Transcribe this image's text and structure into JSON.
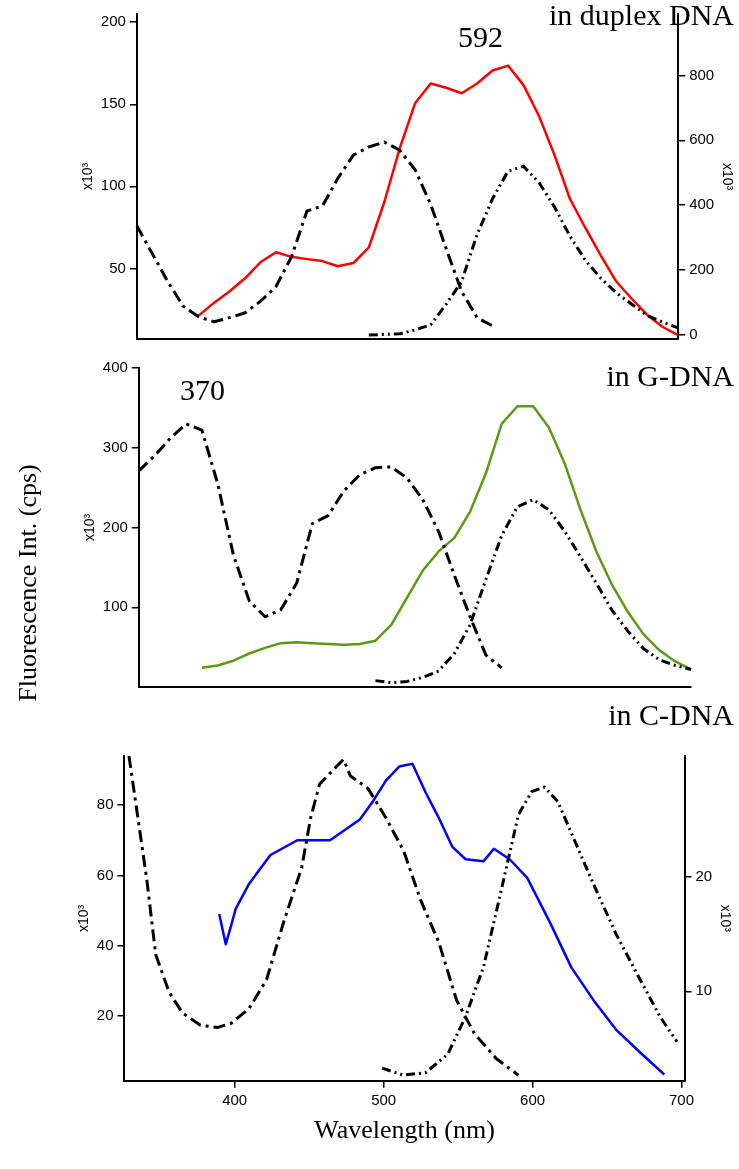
{
  "chart_data": [
    {
      "type": "line",
      "title": "in duplex DNA",
      "ylabel": "x10³",
      "y2label": "x10³",
      "categories": [
        null,
        null,
        null,
        null,
        null,
        null,
        null,
        null,
        null,
        null,
        null,
        null,
        null,
        null,
        null,
        null,
        null,
        null,
        null,
        null,
        null,
        null,
        null,
        null,
        null,
        null,
        null,
        null,
        null,
        null,
        null,
        null,
        null,
        null,
        null,
        null
      ],
      "ylim": [
        7,
        205
      ],
      "yticks": [
        50,
        100,
        150,
        200
      ],
      "y2lim": [
        -12,
        989
      ],
      "y2ticks": [
        0,
        200,
        400,
        600,
        800
      ],
      "tick_labels": "y",
      "grid": false,
      "legend": false,
      "marker": "none",
      "annotations": [
        "592"
      ],
      "series": [
        {
          "color": "#000000",
          "line_style": "dashed",
          "values": [
            76,
            59,
            42,
            27,
            20.5,
            17.5,
            20,
            23,
            30,
            39,
            57,
            85,
            88,
            105,
            119,
            124,
            127,
            122,
            110,
            89,
            62,
            36,
            20,
            15,
            null,
            null,
            null,
            null,
            null,
            null,
            null,
            null,
            null,
            null,
            null,
            null
          ]
        },
        {
          "color": "#000000",
          "line_style": "dotted",
          "axis": "y2",
          "values": [
            null,
            null,
            null,
            null,
            null,
            null,
            null,
            null,
            null,
            null,
            null,
            null,
            null,
            null,
            null,
            0,
            2,
            4,
            16,
            32,
            95,
            165,
            310,
            420,
            505,
            520,
            470,
            395,
            305,
            230,
            175,
            130,
            95,
            60,
            40,
            22
          ]
        },
        {
          "color": "#ff0000",
          "line_style": "solid",
          "axis": "y2",
          "values": [
            null,
            null,
            null,
            null,
            60,
            100,
            135,
            175,
            225,
            255,
            241,
            234,
            228,
            212,
            222,
            270,
            410,
            576,
            715,
            775,
            762,
            745,
            775,
            815,
            830,
            770,
            675,
            555,
            420,
            330,
            245,
            165,
            112,
            62,
            25,
            0
          ]
        }
      ]
    },
    {
      "type": "line",
      "title": "in G-DNA",
      "ylabel": "x10³",
      "categories": [
        null,
        null,
        null,
        null,
        null,
        null,
        null,
        null,
        null,
        null,
        null,
        null,
        null,
        null,
        null,
        null,
        null,
        null,
        null,
        null,
        null,
        null,
        null,
        null,
        null,
        null,
        null,
        null,
        null,
        null,
        null,
        null,
        null,
        null,
        null,
        null
      ],
      "ylim": [
        0,
        400
      ],
      "yticks": [
        100,
        200,
        300,
        400
      ],
      "tick_labels": "y",
      "grid": false,
      "legend": false,
      "marker": "none",
      "annotations": [
        "370",
        "Fluorescence Int. (cps)"
      ],
      "series": [
        {
          "color": "#000000",
          "line_style": "dashed",
          "values": [
            271,
            290,
            312,
            330,
            322,
            255,
            165,
            108,
            88,
            97,
            130,
            205,
            215,
            246,
            266,
            275,
            276,
            262,
            235,
            195,
            140,
            88,
            40,
            24,
            null,
            null,
            null,
            null,
            null,
            null,
            null,
            null,
            null,
            null,
            null,
            null
          ]
        },
        {
          "color": "#000000",
          "line_style": "dotted",
          "values": [
            null,
            null,
            null,
            null,
            null,
            null,
            null,
            null,
            null,
            null,
            null,
            null,
            null,
            null,
            null,
            8,
            5.5,
            7,
            12,
            20,
            42,
            78,
            135,
            190,
            226,
            235,
            222,
            195,
            163,
            130,
            96,
            70,
            48,
            34,
            27,
            22
          ]
        },
        {
          "color": "#5b9b12",
          "line_style": "solid",
          "values": [
            null,
            null,
            null,
            null,
            24,
            27,
            33,
            42,
            49,
            55,
            56,
            55,
            54,
            53,
            54,
            58,
            78,
            112,
            146,
            170,
            187,
            220,
            268,
            330,
            352,
            352,
            325,
            280,
            222,
            170,
            128,
            94,
            66,
            46,
            32,
            22
          ]
        }
      ]
    },
    {
      "type": "line",
      "title": "in C-DNA",
      "xlabel": "Wavelength (nm)",
      "ylabel": "x10³",
      "y2label": "x10³",
      "xlim": [
        326,
        702
      ],
      "xticks": [
        400,
        500,
        600,
        700
      ],
      "ylim": [
        1.5,
        94
      ],
      "yticks": [
        20,
        40,
        60,
        80
      ],
      "y2lim": [
        2.2,
        30.5
      ],
      "y2ticks": [
        10,
        20
      ],
      "grid": false,
      "legend": false,
      "marker": "none",
      "series": [
        {
          "color": "#000000",
          "line_style": "dashed",
          "x": [
            329,
            335,
            341,
            347,
            356,
            365,
            377,
            388.7,
            397.6,
            409.5,
            421.4,
            433,
            445,
            451,
            457,
            466,
            473,
            477.7,
            489.6,
            501.5,
            513.4,
            525,
            537,
            549,
            561,
            575.7,
            590.5
          ],
          "values": [
            94,
            76.4,
            58.7,
            37.4,
            26.7,
            20.8,
            17.3,
            16.7,
            17.9,
            22,
            30.3,
            46.9,
            62.2,
            76.4,
            86,
            90,
            93,
            88.3,
            84.7,
            76.4,
            67,
            52.8,
            41,
            24.4,
            14.9,
            7.8,
            3.1
          ]
        },
        {
          "color": "#000000",
          "line_style": "dotted",
          "axis": "y2",
          "x": [
            499,
            513,
            528,
            543,
            555,
            567,
            578.6,
            590.5,
            599.4,
            608,
            617,
            629,
            641,
            656,
            670.6,
            685.5,
            697
          ],
          "values": [
            3.3,
            2.7,
            2.9,
            4.5,
            7.8,
            12.1,
            18.6,
            25.4,
            27.4,
            27.8,
            26.5,
            22.9,
            19.3,
            15,
            11.4,
            7.8,
            5.6
          ]
        },
        {
          "color": "#0000ff",
          "line_style": "solid",
          "x": [
            389.6,
            394,
            397.6,
            400.6,
            409.5,
            424,
            442,
            464,
            484,
            493,
            501.5,
            510.4,
            519.3,
            528.2,
            537,
            546,
            555,
            567,
            574,
            584.6,
            596.4,
            611.3,
            626,
            641,
            656,
            670.6,
            688.4
          ],
          "values": [
            49,
            40.4,
            45.7,
            50.4,
            57.5,
            65.8,
            70,
            70,
            75.9,
            81.2,
            87,
            91,
            91.8,
            83.6,
            76.4,
            68.2,
            64.6,
            64,
            67.6,
            64.6,
            59.3,
            46.9,
            33.8,
            24.4,
            16.1,
            10.2,
            3.3
          ]
        }
      ]
    }
  ]
}
